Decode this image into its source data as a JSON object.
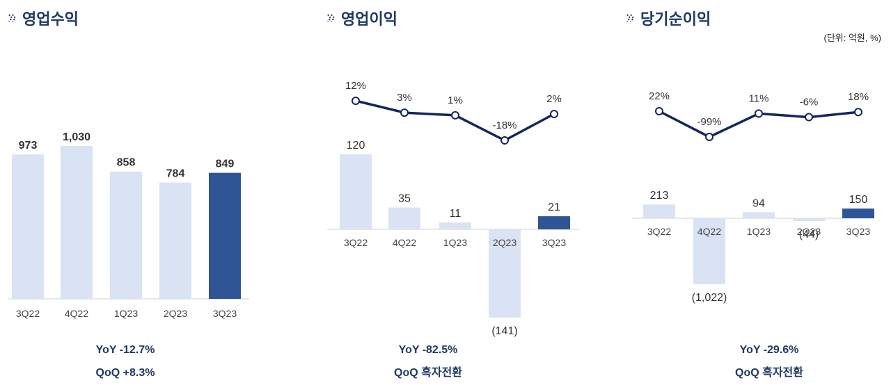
{
  "unit_note": "(단위: 억원, %)",
  "colors": {
    "light_bar": "#dae3f3",
    "highlight_bar": "#2f5597",
    "line": "#13265e",
    "title": "#1f3864"
  },
  "panels": [
    {
      "title": "영업수익",
      "icon": "double-chevron-right-icon",
      "yoy": "YoY  -12.7%",
      "qoq": "QoQ  +8.3%"
    },
    {
      "title": "영업이익",
      "icon": "double-chevron-right-icon",
      "yoy": "YoY  -82.5%",
      "qoq": "QoQ  흑자전환"
    },
    {
      "title": "당기순이익",
      "icon": "double-chevron-right-icon",
      "yoy": "YoY  -29.6%",
      "qoq": "QoQ  흑자전환"
    }
  ],
  "chart_data": [
    {
      "type": "bar",
      "title": "영업수익",
      "categories": [
        "3Q22",
        "4Q22",
        "1Q23",
        "2Q23",
        "3Q23"
      ],
      "values": [
        973,
        1030,
        858,
        784,
        849
      ],
      "value_labels": [
        "973",
        "1,030",
        "858",
        "784",
        "849"
      ],
      "highlight_index": 4
    },
    {
      "type": "bar",
      "title": "영업이익",
      "categories": [
        "3Q22",
        "4Q22",
        "1Q23",
        "2Q23",
        "3Q23"
      ],
      "values": [
        120,
        35,
        11,
        -141,
        21
      ],
      "value_labels": [
        "120",
        "35",
        "11",
        "(141)",
        "21"
      ],
      "highlight_index": 4,
      "margin_line": {
        "values": [
          12,
          3,
          1,
          -18,
          2
        ],
        "labels": [
          "12%",
          "3%",
          "1%",
          "-18%",
          "2%"
        ]
      }
    },
    {
      "type": "bar",
      "title": "당기순이익",
      "categories": [
        "3Q22",
        "4Q22",
        "1Q23",
        "2Q23",
        "3Q23"
      ],
      "values": [
        213,
        -1022,
        94,
        -44,
        150
      ],
      "value_labels": [
        "213",
        "(1,022)",
        "94",
        "(44)",
        "150"
      ],
      "highlight_index": 4,
      "margin_line": {
        "values": [
          22,
          -99,
          11,
          -6,
          18
        ],
        "labels": [
          "22%",
          "-99%",
          "11%",
          "-6%",
          "18%"
        ]
      }
    }
  ]
}
